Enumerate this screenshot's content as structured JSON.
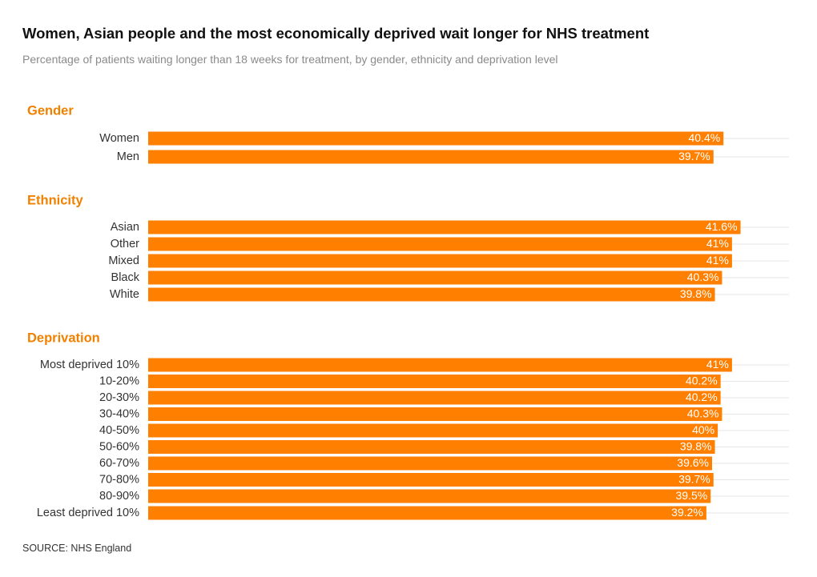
{
  "header": {
    "title": "Women, Asian people and the most economically deprived wait longer for NHS treatment",
    "subtitle": "Percentage of patients waiting longer than 18 weeks for treatment, by gender, ethnicity and deprivation level"
  },
  "footer": {
    "source": "SOURCE: NHS England"
  },
  "colors": {
    "bar": "#ff7f00",
    "group_label": "#f08100",
    "gridline": "#e6e6e6"
  },
  "chart_data": {
    "type": "bar",
    "orientation": "horizontal",
    "unit": "%",
    "xlim": [
      0,
      45
    ],
    "groups": [
      {
        "name": "Gender",
        "categories": [
          "Women",
          "Men"
        ],
        "values": [
          40.4,
          39.7
        ],
        "labels": [
          "40.4%",
          "39.7%"
        ]
      },
      {
        "name": "Ethnicity",
        "categories": [
          "Asian",
          "Other",
          "Mixed",
          "Black",
          "White"
        ],
        "values": [
          41.6,
          41,
          41,
          40.3,
          39.8
        ],
        "labels": [
          "41.6%",
          "41%",
          "41%",
          "40.3%",
          "39.8%"
        ]
      },
      {
        "name": "Deprivation",
        "categories": [
          "Most deprived 10%",
          "10-20%",
          "20-30%",
          "30-40%",
          "40-50%",
          "50-60%",
          "60-70%",
          "70-80%",
          "80-90%",
          "Least deprived 10%"
        ],
        "values": [
          41,
          40.2,
          40.2,
          40.3,
          40,
          39.8,
          39.6,
          39.7,
          39.5,
          39.2
        ],
        "labels": [
          "41%",
          "40.2%",
          "40.2%",
          "40.3%",
          "40%",
          "39.8%",
          "39.6%",
          "39.7%",
          "39.5%",
          "39.2%"
        ]
      }
    ]
  }
}
